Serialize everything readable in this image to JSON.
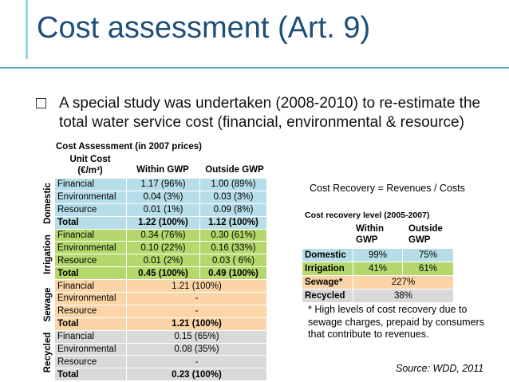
{
  "slide": {
    "title": "Cost assessment (Art. 9)",
    "bullet": "A special study was undertaken (2008-2010) to re-estimate the total water service cost (financial, environmental & resource)"
  },
  "cost_table": {
    "title": "Cost Assessment (in 2007 prices)",
    "unit_line1": "Unit Cost",
    "unit_line2": "(€/m³)",
    "col_within": "Within GWP",
    "col_outside": "Outside GWP",
    "groups": [
      {
        "name": "Domestic",
        "rows": [
          {
            "label": "Financial",
            "within": "1.17 (96%)",
            "outside": "1.00 (89%)"
          },
          {
            "label": "Environmental",
            "within": "0.04 (3%)",
            "outside": "0.03 (3%)"
          },
          {
            "label": "Resource",
            "within": "0.01 (1%)",
            "outside": "0.09 (8%)"
          },
          {
            "label": "Total",
            "within": "1.22 (100%)",
            "outside": "1.12 (100%)"
          }
        ]
      },
      {
        "name": "Irrigation",
        "rows": [
          {
            "label": "Financial",
            "within": "0.34 (76%)",
            "outside": "0.30 (61%)"
          },
          {
            "label": "Environmental",
            "within": "0.10 (22%)",
            "outside": "0.16 (33%)"
          },
          {
            "label": "Resource",
            "within": "0.01 (2%)",
            "outside": "0.03 (  6%)"
          },
          {
            "label": "Total",
            "within": "0.45 (100%)",
            "outside": "0.49 (100%)"
          }
        ]
      },
      {
        "name": "Sewage",
        "rows": [
          {
            "label": "Financial",
            "value": "1.21 (100%)"
          },
          {
            "label": "Environmental",
            "value": "-"
          },
          {
            "label": "Resource",
            "value": "-"
          },
          {
            "label": "Total",
            "value": "1.21 (100%)"
          }
        ]
      },
      {
        "name": "Recycled",
        "rows": [
          {
            "label": "Financial",
            "value": "0.15 (65%)"
          },
          {
            "label": "Environmental",
            "value": "0.08 (35%)"
          },
          {
            "label": "Resource",
            "value": "-"
          },
          {
            "label": "Total",
            "value": "0.23 (100%)"
          }
        ]
      }
    ]
  },
  "recovery": {
    "formula": "Cost Recovery = Revenues / Costs",
    "title": "Cost recovery level (2005-2007)",
    "col_within_1": "Within",
    "col_within_2": "GWP",
    "col_outside_1": "Outside",
    "col_outside_2": "GWP",
    "rows": [
      {
        "label": "Domestic",
        "within": "99%",
        "outside": "75%"
      },
      {
        "label": "Irrigation",
        "within": "41%",
        "outside": "61%"
      },
      {
        "label": "Sewage*",
        "value": "227%"
      },
      {
        "label": "Recycled",
        "value": "38%"
      }
    ],
    "footnote": "* High levels of cost recovery due to sewage charges, prepaid by consumers that contribute to revenues.",
    "source": "Source: WDD, 2011"
  },
  "colors": {
    "title": "#1f4e79",
    "domestic": "#b6dde8",
    "irrigation": "#b5d86d",
    "sewage": "#fbd5a7",
    "recycled": "#d9d9d9"
  }
}
